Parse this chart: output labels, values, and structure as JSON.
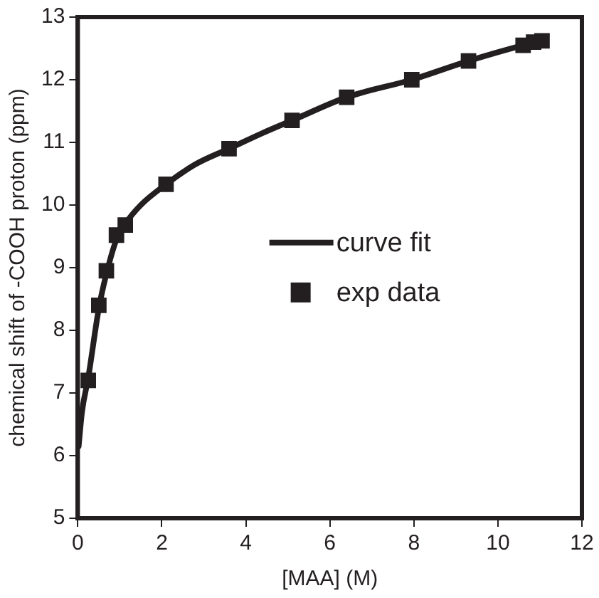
{
  "chart_data": {
    "type": "scatter",
    "xlabel": "[MAA] (M)",
    "ylabel": "chemical shift of -COOH proton (ppm)",
    "xlim": [
      0,
      12
    ],
    "ylim": [
      5,
      13
    ],
    "xticks": [
      0,
      2,
      4,
      6,
      8,
      10,
      12
    ],
    "yticks": [
      5,
      6,
      7,
      8,
      9,
      10,
      11,
      12,
      13
    ],
    "grid": false,
    "legend": "center",
    "series": [
      {
        "name": "curve fit",
        "type": "line",
        "color": "#231f20",
        "marker": "none",
        "line_style": "solid",
        "x": [
          0.02,
          0.1,
          0.25,
          0.5,
          0.68,
          0.92,
          1.13,
          1.5,
          2.1,
          2.8,
          3.6,
          4.4,
          5.1,
          6.4,
          7.95,
          9.3,
          10.6,
          11.05
        ],
        "values": [
          6.15,
          6.7,
          7.25,
          8.35,
          8.9,
          9.45,
          9.7,
          10.0,
          10.33,
          10.65,
          10.9,
          11.15,
          11.35,
          11.72,
          12.0,
          12.3,
          12.55,
          12.62
        ]
      },
      {
        "name": "exp data",
        "color": "#231f20",
        "marker": "square",
        "x": [
          0.25,
          0.5,
          0.68,
          0.92,
          1.13,
          2.1,
          3.6,
          5.1,
          6.4,
          7.95,
          9.3,
          10.6,
          10.85,
          11.05
        ],
        "values": [
          7.2,
          8.4,
          8.95,
          9.52,
          9.68,
          10.33,
          10.9,
          11.35,
          11.72,
          12.0,
          12.3,
          12.55,
          12.6,
          12.62
        ]
      }
    ]
  }
}
